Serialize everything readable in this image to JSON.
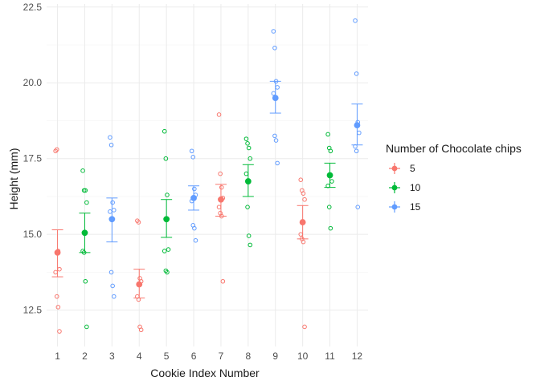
{
  "chart_data": {
    "type": "scatter",
    "title": "",
    "xlabel": "Cookie Index Number",
    "ylabel": "Height (mm)",
    "xlim": [
      0.6,
      12.4
    ],
    "ylim": [
      11.3,
      22.6
    ],
    "x_ticks": [
      1,
      2,
      3,
      4,
      5,
      6,
      7,
      8,
      9,
      10,
      11,
      12
    ],
    "y_ticks": [
      12.5,
      15.0,
      17.5,
      20.0,
      22.5
    ],
    "y_tick_labels": [
      "12.5",
      "15.0",
      "17.5",
      "20.0",
      "22.5"
    ],
    "grid": true,
    "legend": {
      "title": "Number of Chocolate chips",
      "placement": "right",
      "entries": [
        {
          "label": "5",
          "color": "#F8766D"
        },
        {
          "label": "10",
          "color": "#00BA38"
        },
        {
          "label": "15",
          "color": "#619CFF"
        }
      ]
    },
    "series": [
      {
        "name": "5",
        "color": "#F8766D",
        "cookies": [
          {
            "x": 1,
            "points": [
              17.75,
              17.8,
              14.45,
              13.85,
              13.75,
              12.95,
              12.6,
              11.8
            ],
            "mean": 14.4,
            "lower": 13.6,
            "upper": 15.15
          },
          {
            "x": 4,
            "points": [
              15.45,
              15.4,
              13.55,
              13.45,
              12.95,
              12.85,
              11.95,
              11.85
            ],
            "mean": 13.35,
            "lower": 12.9,
            "upper": 13.85
          },
          {
            "x": 7,
            "points": [
              18.95,
              17.0,
              16.55,
              16.2,
              15.9,
              15.7,
              15.6,
              13.45
            ],
            "mean": 16.15,
            "lower": 15.6,
            "upper": 16.65
          },
          {
            "x": 10,
            "points": [
              16.8,
              16.45,
              16.35,
              16.15,
              15.0,
              14.85,
              14.75,
              11.95
            ],
            "mean": 15.4,
            "lower": 14.85,
            "upper": 15.95
          }
        ]
      },
      {
        "name": "10",
        "color": "#00BA38",
        "cookies": [
          {
            "x": 2,
            "points": [
              17.1,
              16.45,
              16.45,
              16.05,
              14.45,
              14.4,
              13.45,
              11.95
            ],
            "mean": 15.05,
            "lower": 14.4,
            "upper": 15.7
          },
          {
            "x": 5,
            "points": [
              18.4,
              17.5,
              16.3,
              14.5,
              14.45,
              13.8,
              13.75
            ],
            "mean": 15.5,
            "lower": 14.9,
            "upper": 16.15
          },
          {
            "x": 8,
            "points": [
              18.15,
              18.0,
              17.85,
              17.5,
              17.0,
              15.9,
              14.95,
              14.65
            ],
            "mean": 16.75,
            "lower": 16.25,
            "upper": 17.3
          },
          {
            "x": 11,
            "points": [
              18.3,
              17.85,
              17.75,
              16.75,
              16.6,
              15.9,
              15.2
            ],
            "mean": 16.95,
            "lower": 16.55,
            "upper": 17.35
          }
        ]
      },
      {
        "name": "15",
        "color": "#619CFF",
        "cookies": [
          {
            "x": 3,
            "points": [
              18.2,
              17.95,
              16.05,
              15.8,
              15.75,
              13.75,
              13.3,
              12.95
            ],
            "mean": 15.5,
            "lower": 14.75,
            "upper": 16.2
          },
          {
            "x": 6,
            "points": [
              17.75,
              17.55,
              16.5,
              16.3,
              16.1,
              15.3,
              15.2,
              14.8
            ],
            "mean": 16.2,
            "lower": 15.8,
            "upper": 16.6
          },
          {
            "x": 9,
            "points": [
              21.7,
              21.15,
              20.05,
              19.85,
              19.65,
              18.25,
              18.1,
              17.35
            ],
            "mean": 19.5,
            "lower": 19.0,
            "upper": 20.05
          },
          {
            "x": 12,
            "points": [
              22.05,
              20.3,
              18.7,
              18.35,
              17.9,
              17.75,
              15.9
            ],
            "mean": 18.6,
            "lower": 17.95,
            "upper": 19.3
          }
        ]
      }
    ]
  }
}
